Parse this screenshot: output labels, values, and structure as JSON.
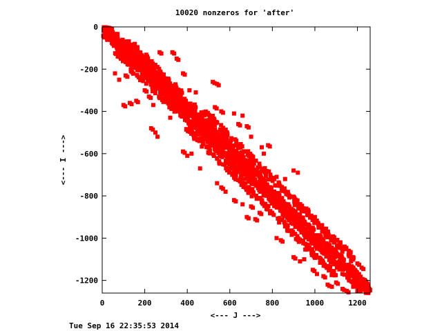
{
  "chart_data": {
    "type": "scatter",
    "title": "10020 nonzeros for 'after'",
    "xlabel": "<--- J --->",
    "ylabel": "<--- I --->",
    "xlim": [
      0,
      1260
    ],
    "ylim": [
      1260,
      0
    ],
    "xticks": [
      0,
      200,
      400,
      600,
      800,
      1000,
      1200
    ],
    "yticks": [
      0,
      -200,
      -400,
      -600,
      -800,
      -1000,
      -1200
    ],
    "y_reversed": true,
    "grid": false,
    "marker": "square",
    "point_color": "#ff0000",
    "nonzero_count": 10020,
    "pattern_description": "banded structure along the main diagonal with off-diagonal bands and scattered blocks",
    "band_segments": [
      {
        "x0": 0,
        "y0": 0,
        "x1": 1260,
        "y1": 1260,
        "width": 60
      },
      {
        "x0": 40,
        "y0": 40,
        "x1": 380,
        "y1": 380,
        "width": 30
      },
      {
        "x0": 60,
        "y0": 120,
        "x1": 700,
        "y1": 740,
        "width": 25
      },
      {
        "x0": 120,
        "y0": 60,
        "x1": 740,
        "y1": 700,
        "width": 25
      },
      {
        "x0": 400,
        "y0": 480,
        "x1": 1100,
        "y1": 1180,
        "width": 25
      },
      {
        "x0": 480,
        "y0": 400,
        "x1": 1180,
        "y1": 1100,
        "width": 25
      }
    ],
    "scatter_blocks": [
      {
        "x": 60,
        "y": 220
      },
      {
        "x": 80,
        "y": 250
      },
      {
        "x": 110,
        "y": 230
      },
      {
        "x": 100,
        "y": 370
      },
      {
        "x": 130,
        "y": 360
      },
      {
        "x": 160,
        "y": 350
      },
      {
        "x": 200,
        "y": 300
      },
      {
        "x": 220,
        "y": 330
      },
      {
        "x": 240,
        "y": 370
      },
      {
        "x": 250,
        "y": 500
      },
      {
        "x": 260,
        "y": 520
      },
      {
        "x": 230,
        "y": 480
      },
      {
        "x": 270,
        "y": 120
      },
      {
        "x": 330,
        "y": 120
      },
      {
        "x": 350,
        "y": 150
      },
      {
        "x": 380,
        "y": 220
      },
      {
        "x": 410,
        "y": 300
      },
      {
        "x": 440,
        "y": 310
      },
      {
        "x": 520,
        "y": 260
      },
      {
        "x": 540,
        "y": 270
      },
      {
        "x": 320,
        "y": 430
      },
      {
        "x": 380,
        "y": 590
      },
      {
        "x": 400,
        "y": 610
      },
      {
        "x": 420,
        "y": 600
      },
      {
        "x": 460,
        "y": 670
      },
      {
        "x": 530,
        "y": 380
      },
      {
        "x": 560,
        "y": 400
      },
      {
        "x": 620,
        "y": 410
      },
      {
        "x": 660,
        "y": 420
      },
      {
        "x": 640,
        "y": 460
      },
      {
        "x": 680,
        "y": 470
      },
      {
        "x": 700,
        "y": 520
      },
      {
        "x": 750,
        "y": 570
      },
      {
        "x": 760,
        "y": 600
      },
      {
        "x": 780,
        "y": 560
      },
      {
        "x": 820,
        "y": 710
      },
      {
        "x": 860,
        "y": 720
      },
      {
        "x": 900,
        "y": 680
      },
      {
        "x": 920,
        "y": 690
      },
      {
        "x": 560,
        "y": 760
      },
      {
        "x": 580,
        "y": 780
      },
      {
        "x": 540,
        "y": 740
      },
      {
        "x": 620,
        "y": 820
      },
      {
        "x": 660,
        "y": 840
      },
      {
        "x": 700,
        "y": 850
      },
      {
        "x": 680,
        "y": 900
      },
      {
        "x": 720,
        "y": 910
      },
      {
        "x": 740,
        "y": 880
      },
      {
        "x": 820,
        "y": 1000
      },
      {
        "x": 840,
        "y": 1010
      },
      {
        "x": 870,
        "y": 960
      },
      {
        "x": 930,
        "y": 840
      },
      {
        "x": 960,
        "y": 860
      },
      {
        "x": 1000,
        "y": 900
      },
      {
        "x": 1020,
        "y": 940
      },
      {
        "x": 1050,
        "y": 990
      },
      {
        "x": 1080,
        "y": 1000
      },
      {
        "x": 1120,
        "y": 1020
      },
      {
        "x": 1140,
        "y": 1040
      },
      {
        "x": 1160,
        "y": 1060
      },
      {
        "x": 1170,
        "y": 1110
      },
      {
        "x": 1200,
        "y": 1120
      },
      {
        "x": 1220,
        "y": 1140
      },
      {
        "x": 900,
        "y": 1090
      },
      {
        "x": 930,
        "y": 1110
      },
      {
        "x": 950,
        "y": 1100
      },
      {
        "x": 990,
        "y": 1150
      },
      {
        "x": 1010,
        "y": 1170
      },
      {
        "x": 1040,
        "y": 1180
      },
      {
        "x": 1060,
        "y": 1220
      },
      {
        "x": 1080,
        "y": 1230
      },
      {
        "x": 1100,
        "y": 1210
      },
      {
        "x": 1130,
        "y": 1240
      },
      {
        "x": 1150,
        "y": 1250
      },
      {
        "x": 1180,
        "y": 1230
      },
      {
        "x": 1200,
        "y": 1250
      },
      {
        "x": 1230,
        "y": 1240
      },
      {
        "x": 1240,
        "y": 1220
      }
    ]
  },
  "footer": {
    "timestamp": "Tue Sep 16 22:35:53 2014"
  }
}
